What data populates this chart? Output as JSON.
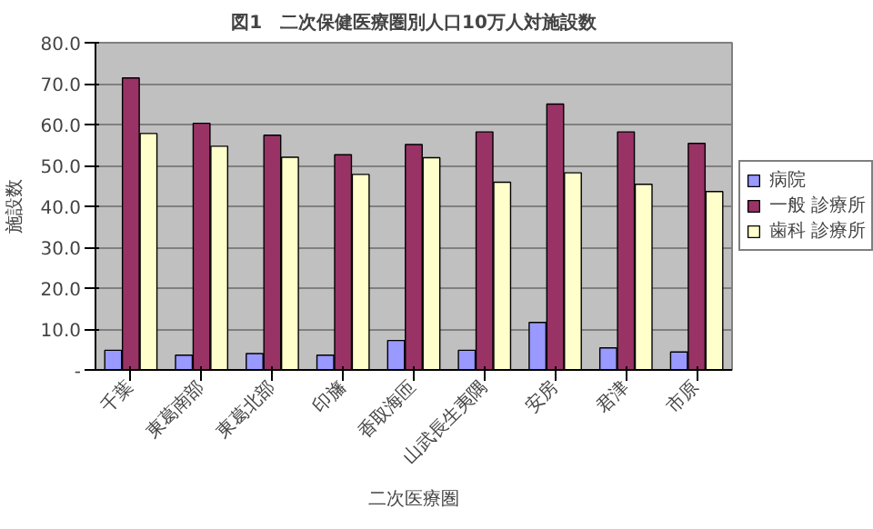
{
  "chart_data": {
    "type": "bar",
    "title": "図1　二次保健医療圏別人口10万人対施設数",
    "ylabel": "施設数",
    "xlabel": "二次医療圏",
    "categories": [
      "千葉",
      "東葛南部",
      "東葛北部",
      "印旛",
      "香取海匝",
      "山武長生夷隅",
      "安房",
      "君津",
      "市原"
    ],
    "series": [
      {
        "name": "病院",
        "color": "#9999ff",
        "values": [
          4.8,
          3.6,
          4.0,
          3.6,
          7.2,
          4.8,
          11.6,
          5.4,
          4.4
        ]
      },
      {
        "name": "一般 診療所",
        "color": "#993366",
        "values": [
          71.4,
          60.3,
          57.4,
          52.6,
          55.1,
          58.2,
          65.0,
          58.2,
          55.4
        ]
      },
      {
        "name": "歯科 診療所",
        "color": "#ffffcc",
        "values": [
          57.8,
          54.7,
          52.0,
          47.8,
          51.9,
          45.9,
          48.2,
          45.4,
          43.6
        ]
      }
    ],
    "ylim": [
      0,
      80
    ],
    "yticks": [
      {
        "value": 0,
        "label": "-"
      },
      {
        "value": 10,
        "label": "10.0"
      },
      {
        "value": 20,
        "label": "20.0"
      },
      {
        "value": 30,
        "label": "30.0"
      },
      {
        "value": 40,
        "label": "40.0"
      },
      {
        "value": 50,
        "label": "50.0"
      },
      {
        "value": 60,
        "label": "60.0"
      },
      {
        "value": 70,
        "label": "70.0"
      },
      {
        "value": 80,
        "label": "80.0"
      }
    ],
    "grid": "y",
    "legend": "right"
  }
}
